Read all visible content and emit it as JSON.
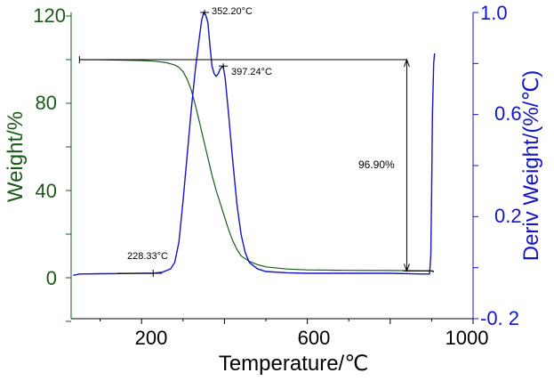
{
  "chart_data": {
    "type": "line",
    "xlabel": "Temperature/℃",
    "ylabel_left": "Weight/%",
    "ylabel_right": "Deriv Weight/(%/℃)",
    "x_ticks": [
      "200",
      "600",
      "1000"
    ],
    "y_left_ticks": [
      "0",
      "40",
      "80",
      "120"
    ],
    "y_right_ticks": [
      "-0. 2",
      "0.2",
      "0.6",
      "1.0"
    ],
    "xlim": [
      30,
      1000
    ],
    "ylim_left": [
      -20,
      120
    ],
    "ylim_right": [
      -0.2,
      1.0
    ],
    "colors": {
      "weight": "#1c5a1c",
      "deriv": "#1414c8",
      "annotation": "#000000"
    },
    "series": [
      {
        "axis": "left",
        "x": [
          50,
          100,
          150,
          200,
          230,
          260,
          280,
          290,
          300,
          310,
          320,
          330,
          340,
          350,
          360,
          370,
          380,
          390,
          400,
          410,
          420,
          430,
          440,
          460,
          480,
          500,
          550,
          600,
          700,
          800,
          900,
          905
        ],
        "y": [
          100,
          99.9,
          99.8,
          99.6,
          99.3,
          98.6,
          97.5,
          96.5,
          94.5,
          91,
          86,
          79,
          71,
          63,
          55,
          47,
          40,
          34,
          28,
          22,
          17,
          13,
          10,
          7.5,
          6,
          5,
          4,
          3.6,
          3.4,
          3.3,
          3.2,
          2.5
        ]
      },
      {
        "axis": "right",
        "x": [
          35,
          50,
          100,
          150,
          200,
          228,
          250,
          270,
          280,
          290,
          300,
          310,
          320,
          330,
          340,
          345,
          350,
          355,
          360,
          365,
          370,
          375,
          380,
          385,
          390,
          397,
          402,
          410,
          420,
          430,
          440,
          450,
          460,
          480,
          500,
          550,
          600,
          700,
          800,
          880,
          895,
          898,
          900,
          902,
          905,
          907
        ],
        "y": [
          -0.03,
          -0.025,
          -0.024,
          -0.023,
          -0.022,
          -0.022,
          -0.018,
          -0.005,
          0.02,
          0.1,
          0.26,
          0.44,
          0.62,
          0.78,
          0.91,
          0.97,
          1.0,
          0.99,
          0.96,
          0.87,
          0.79,
          0.76,
          0.75,
          0.76,
          0.78,
          0.79,
          0.74,
          0.6,
          0.42,
          0.25,
          0.13,
          0.06,
          0.02,
          -0.005,
          -0.015,
          -0.02,
          -0.022,
          -0.022,
          -0.022,
          -0.025,
          -0.025,
          0.05,
          0.3,
          0.6,
          0.8,
          0.84
        ]
      }
    ],
    "annotations": {
      "onset_label": "228.33°C",
      "peak1_label": "352.20°C",
      "peak2_label": "397.24°C",
      "mass_loss_label": "96.90%"
    },
    "markers": {
      "onset": {
        "x": 228,
        "y_right": -0.022
      },
      "peak1": {
        "x": 352.2,
        "y_right": 1.0
      },
      "peak2": {
        "x": 397.2,
        "y_right": 0.79
      },
      "mass_loss_start": {
        "x": 50,
        "y_left": 100,
        "x_end": 840
      },
      "mass_loss_end": {
        "x": 840,
        "y_left": 3.1,
        "x_end": 905
      }
    }
  }
}
